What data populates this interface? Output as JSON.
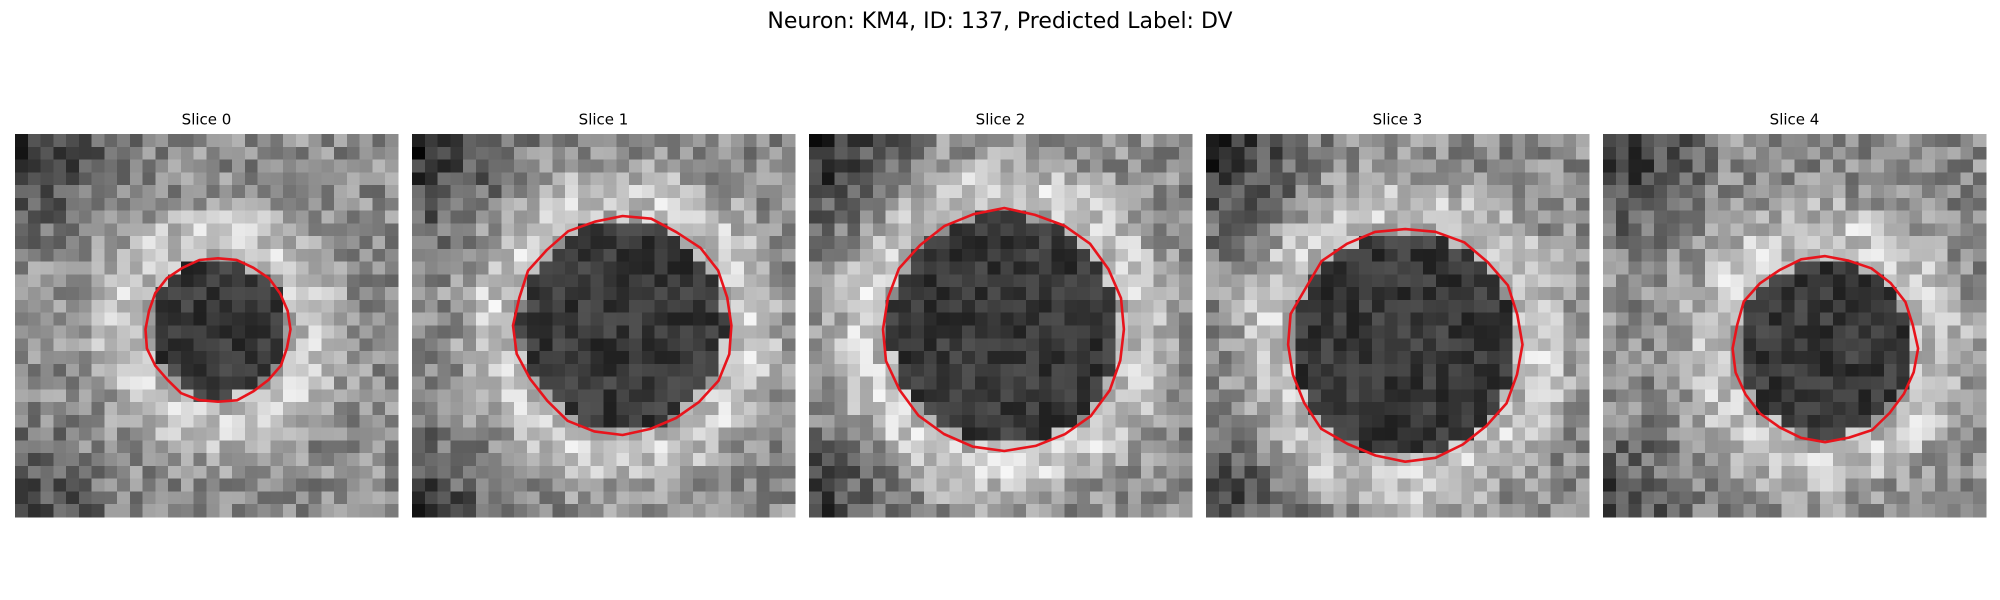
{
  "figure": {
    "title": "Neuron: KM4, ID: 137, Predicted Label: DV",
    "panels": [
      "Slice 0",
      "Slice 1",
      "Slice 2",
      "Slice 3",
      "Slice 4"
    ]
  }
}
